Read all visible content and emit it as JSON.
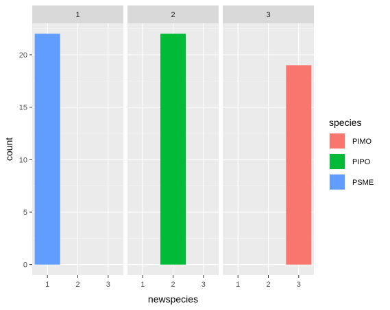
{
  "chart_data": {
    "type": "bar",
    "facet_variable_panels": [
      "1",
      "2",
      "3"
    ],
    "categories": [
      "1",
      "2",
      "3"
    ],
    "xlabel": "newspecies",
    "ylabel": "count",
    "ylim": [
      0,
      23
    ],
    "yticks": [
      0,
      5,
      10,
      15,
      20
    ],
    "grid": true,
    "legend": {
      "title": "species",
      "position": "right",
      "entries": [
        {
          "label": "PIMO",
          "color": "#F8766D"
        },
        {
          "label": "PIPO",
          "color": "#00BA38"
        },
        {
          "label": "PSME",
          "color": "#619CFF"
        }
      ]
    },
    "bars": [
      {
        "panel": "1",
        "category": "1",
        "species": "PSME",
        "value": 22
      },
      {
        "panel": "2",
        "category": "2",
        "species": "PIPO",
        "value": 22
      },
      {
        "panel": "3",
        "category": "3",
        "species": "PIMO",
        "value": 19
      }
    ]
  }
}
